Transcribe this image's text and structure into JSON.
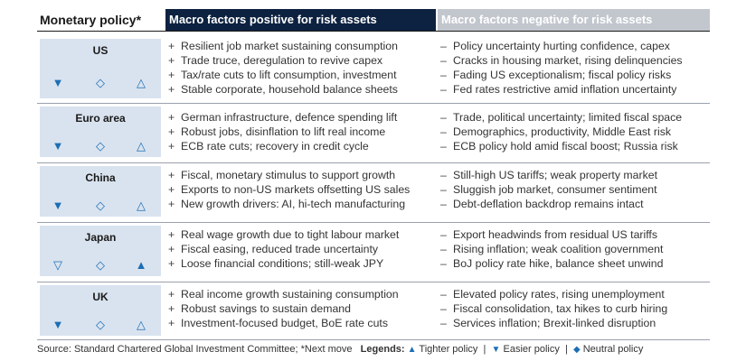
{
  "header": {
    "title": "Monetary policy*",
    "positive": "Macro factors positive for risk assets",
    "negative": "Macro factors negative for risk assets"
  },
  "symbols": {
    "plus": "+",
    "minus": "–",
    "easier": "▼",
    "neutral": "◇",
    "tighter_outline": "△",
    "easier_outline": "▽",
    "tighter_filled": "▲"
  },
  "regions": [
    {
      "name": "US",
      "policy": [
        "▼",
        "◇",
        "△"
      ],
      "positive": [
        "Resilient job market sustaining consumption",
        "Trade truce, deregulation to revive capex",
        "Tax/rate cuts to lift consumption, investment",
        "Stable corporate, household balance sheets"
      ],
      "negative": [
        "Policy uncertainty hurting confidence, capex",
        "Cracks in housing market, rising delinquencies",
        "Fading US exceptionalism; fiscal policy risks",
        "Fed rates restrictive amid inflation uncertainty"
      ]
    },
    {
      "name": "Euro area",
      "policy": [
        "▼",
        "◇",
        "△"
      ],
      "positive": [
        "German infrastructure, defence spending lift",
        "Robust jobs, disinflation to lift real income",
        "ECB rate cuts; recovery in credit cycle"
      ],
      "negative": [
        "Trade, political uncertainty; limited fiscal space",
        "Demographics, productivity, Middle East risk",
        "ECB policy hold amid fiscal boost; Russia risk"
      ]
    },
    {
      "name": "China",
      "policy": [
        "▼",
        "◇",
        "△"
      ],
      "positive": [
        "Fiscal, monetary stimulus to support growth",
        "Exports to non-US markets offsetting US sales",
        "New growth drivers: AI, hi-tech manufacturing"
      ],
      "negative": [
        "Still-high US tariffs; weak property market",
        "Sluggish job market, consumer sentiment",
        "Debt-deflation backdrop remains intact"
      ]
    },
    {
      "name": "Japan",
      "policy": [
        "▽",
        "◇",
        "▲"
      ],
      "positive": [
        "Real wage growth due to tight labour market",
        "Fiscal easing, reduced trade uncertainty",
        "Loose financial conditions; still-weak JPY"
      ],
      "negative": [
        "Export headwinds from residual US tariffs",
        "Rising inflation; weak coalition government",
        "BoJ policy rate hike, balance sheet unwind"
      ]
    },
    {
      "name": "UK",
      "policy": [
        "▼",
        "◇",
        "△"
      ],
      "positive": [
        "Real income growth sustaining consumption",
        "Robust savings to sustain demand",
        "Investment-focused budget, BoE rate cuts"
      ],
      "negative": [
        "Elevated policy rates, rising unemployment",
        "Fiscal consolidation, tax hikes to curb hiring",
        "Services inflation; Brexit-linked disruption"
      ]
    }
  ],
  "footer": {
    "source": "Source: Standard Chartered Global Investment Committee; *Next move",
    "legends_label": "Legends:",
    "tighter_symbol": "▲",
    "tighter": "Tighter policy",
    "sep1": "|",
    "easier_symbol": "▼",
    "easier": "Easier policy",
    "sep2": "|",
    "neutral_symbol": "◆",
    "neutral": "Neutral policy"
  },
  "colors": {
    "header_dark": "#0d2240",
    "header_light": "#c2c7ce",
    "region_box": "#d9e3ef",
    "symbol_blue": "#1c6fb5"
  }
}
